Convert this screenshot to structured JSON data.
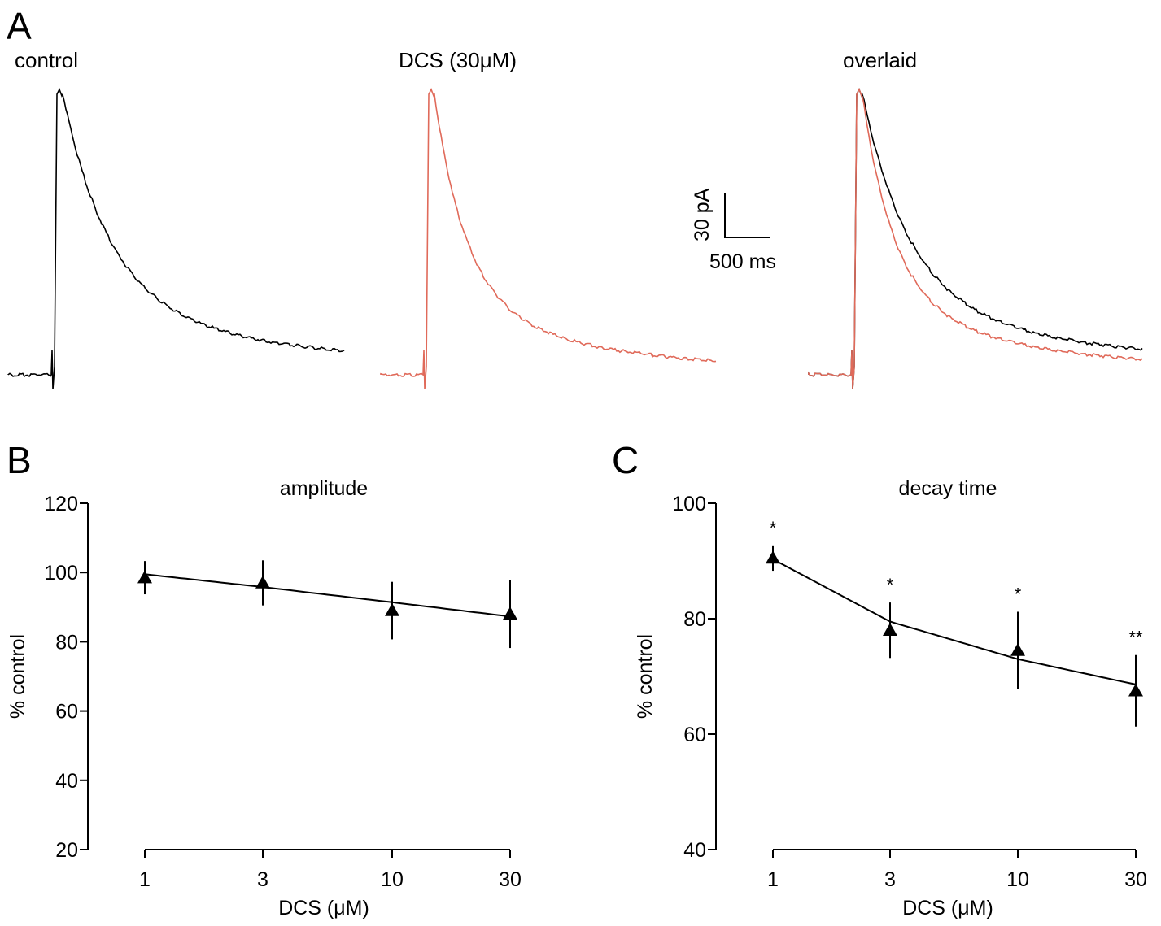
{
  "panels": {
    "A": {
      "letter": "A",
      "traces": [
        {
          "title": "control",
          "color": "#000000"
        },
        {
          "title": "DCS (30μM)",
          "color": "#e06a5a"
        },
        {
          "title": "overlaid"
        }
      ],
      "scale_bar": {
        "amplitude_label": "30 pA",
        "time_label": "500 ms"
      }
    },
    "B": {
      "letter": "B"
    },
    "C": {
      "letter": "C"
    }
  },
  "chart_data": [
    {
      "panel": "B",
      "type": "scatter",
      "title": "amplitude",
      "xlabel": "DCS (μM)",
      "ylabel": "% control",
      "xscale": "log",
      "x": [
        1,
        3,
        10,
        30
      ],
      "xticks": [
        "1",
        "3",
        "10",
        "30"
      ],
      "y": [
        98.5,
        97,
        89,
        88
      ],
      "error": [
        4.8,
        6.5,
        8.3,
        9.8
      ],
      "fit_line": [
        99.5,
        95.8,
        91.4,
        87.3
      ],
      "ylim": [
        20,
        120
      ],
      "yticks": [
        "20",
        "40",
        "60",
        "80",
        "100",
        "120"
      ],
      "significance": [
        "",
        "",
        "",
        ""
      ],
      "marker": "triangle",
      "color": "#000000"
    },
    {
      "panel": "C",
      "type": "scatter",
      "title": "decay time",
      "xlabel": "DCS (μM)",
      "ylabel": "% control",
      "xscale": "log",
      "x": [
        1,
        3,
        10,
        30
      ],
      "xticks": [
        "1",
        "3",
        "10",
        "30"
      ],
      "y": [
        90.5,
        78,
        74.5,
        67.5
      ],
      "error": [
        2.2,
        4.8,
        6.7,
        6.2
      ],
      "fit_line": [
        90.3,
        79.5,
        73.0,
        68.6
      ],
      "ylim": [
        40,
        100
      ],
      "yticks": [
        "40",
        "60",
        "80",
        "100"
      ],
      "significance": [
        "*",
        "*",
        "*",
        "**"
      ],
      "marker": "triangle",
      "color": "#000000"
    }
  ]
}
